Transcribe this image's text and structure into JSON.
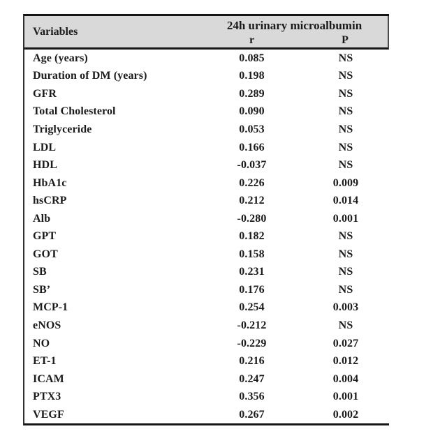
{
  "table": {
    "header": {
      "variables_label": "Variables",
      "span_label": "24h urinary microalbumin",
      "r_label": "r",
      "p_label": "P"
    },
    "rows": [
      {
        "variable": "Age (years)",
        "r": "0.085",
        "p": "NS"
      },
      {
        "variable": "Duration of DM (years)",
        "r": "0.198",
        "p": "NS"
      },
      {
        "variable": "GFR",
        "r": "0.289",
        "p": "NS"
      },
      {
        "variable": "Total Cholesterol",
        "r": "0.090",
        "p": "NS"
      },
      {
        "variable": "Triglyceride",
        "r": "0.053",
        "p": "NS"
      },
      {
        "variable": "LDL",
        "r": "0.166",
        "p": "NS"
      },
      {
        "variable": "HDL",
        "r": "-0.037",
        "p": "NS"
      },
      {
        "variable": "HbA1c",
        "r": "0.226",
        "p": "0.009"
      },
      {
        "variable": "hsCRP",
        "r": "0.212",
        "p": "0.014"
      },
      {
        "variable": "Alb",
        "r": "-0.280",
        "p": "0.001"
      },
      {
        "variable": "GPT",
        "r": "0.182",
        "p": "NS"
      },
      {
        "variable": "GOT",
        "r": "0.158",
        "p": "NS"
      },
      {
        "variable": "SB",
        "r": "0.231",
        "p": "NS"
      },
      {
        "variable": "SB’",
        "r": "0.176",
        "p": "NS"
      },
      {
        "variable": "MCP-1",
        "r": "0.254",
        "p": "0.003"
      },
      {
        "variable": "eNOS",
        "r": "-0.212",
        "p": "NS"
      },
      {
        "variable": "NO",
        "r": "-0.229",
        "p": "0.027"
      },
      {
        "variable": "ET-1",
        "r": "0.216",
        "p": "0.012"
      },
      {
        "variable": "ICAM",
        "r": "0.247",
        "p": "0.004"
      },
      {
        "variable": "PTX3",
        "r": "0.356",
        "p": "0.001"
      },
      {
        "variable": "VEGF",
        "r": "0.267",
        "p": "0.002"
      }
    ]
  },
  "colors": {
    "header_bg": "#d9d9d9",
    "rule": "#151515",
    "text": "#1b1b1b",
    "page_bg": "#ffffff"
  },
  "chart_data": {
    "type": "table",
    "columns": [
      "Variables",
      "24h urinary microalbumin r",
      "24h urinary microalbumin P"
    ],
    "rows": [
      [
        "Age (years)",
        0.085,
        "NS"
      ],
      [
        "Duration of DM (years)",
        0.198,
        "NS"
      ],
      [
        "GFR",
        0.289,
        "NS"
      ],
      [
        "Total Cholesterol",
        0.09,
        "NS"
      ],
      [
        "Triglyceride",
        0.053,
        "NS"
      ],
      [
        "LDL",
        0.166,
        "NS"
      ],
      [
        "HDL",
        -0.037,
        "NS"
      ],
      [
        "HbA1c",
        0.226,
        0.009
      ],
      [
        "hsCRP",
        0.212,
        0.014
      ],
      [
        "Alb",
        -0.28,
        0.001
      ],
      [
        "GPT",
        0.182,
        "NS"
      ],
      [
        "GOT",
        0.158,
        "NS"
      ],
      [
        "SB",
        0.231,
        "NS"
      ],
      [
        "SB'",
        0.176,
        "NS"
      ],
      [
        "MCP-1",
        0.254,
        0.003
      ],
      [
        "eNOS",
        -0.212,
        "NS"
      ],
      [
        "NO",
        -0.229,
        0.027
      ],
      [
        "ET-1",
        0.216,
        0.012
      ],
      [
        "ICAM",
        0.247,
        0.004
      ],
      [
        "PTX3",
        0.356,
        0.001
      ],
      [
        "VEGF",
        0.267,
        0.002
      ]
    ]
  }
}
